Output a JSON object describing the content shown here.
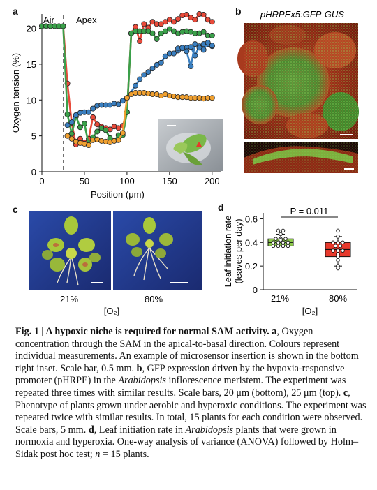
{
  "panels": {
    "a": "a",
    "b": "b",
    "c": "c",
    "d": "d"
  },
  "panel_a": {
    "region_air": "Air",
    "region_apex": "Apex",
    "ylabel": "Oxygen tension (%)",
    "xlabel": "Position (μm)",
    "xticks": [
      "0",
      "50",
      "100",
      "150",
      "200"
    ],
    "yticks": [
      "0",
      "5",
      "10",
      "15",
      "20"
    ]
  },
  "panel_b": {
    "title": "pHRPEx5:GFP-GUS"
  },
  "panel_c": {
    "label_left": "21%",
    "label_right": "80%",
    "axis": "[O₂]"
  },
  "panel_d": {
    "ylabel_line1": "Leaf initiation rate",
    "ylabel_line2": "(leaves per day)",
    "pvalue": "P = 0.011",
    "yticks": [
      "0",
      "0.2",
      "0.4",
      "0.6"
    ],
    "categories": [
      "21%",
      "80%"
    ],
    "axis": "[O₂]"
  },
  "caption": {
    "fig": "Fig. 1 | ",
    "title": "A hypoxic niche is required for normal SAM activity.",
    "a_letter": "a",
    "a_text": ", Oxygen concentration through the SAM in the apical-to-basal direction. Colours represent individual measurements. An example of microsensor insertion is shown in the bottom right inset. Scale bar, 0.5 mm. ",
    "b_letter": "b",
    "b_text_1": ", GFP expression driven by the hypoxia-responsive promoter (pHRPE) in the ",
    "b_species": "Arabidopsis",
    "b_text_2": " inflorescence meristem. The experiment was repeated three times with similar results. Scale bars, 20 μm (bottom), 25 μm (top). ",
    "c_letter": "c",
    "c_text": ", Phenotype of plants grown under aerobic and hyperoxic conditions. The experiment was repeated twice with similar results. In total, 15 plants for each condition were observed. Scale bars, 5 mm. ",
    "d_letter": "d",
    "d_text_1": ", Leaf initiation rate in ",
    "d_species": "Arabidopsis",
    "d_text_2": " plants that were grown in normoxia and hyperoxia. One-way analysis of variance (ANOVA) followed by Holm–Sidak post hoc test; ",
    "d_n": "n",
    "d_text_3": " = 15 plants."
  },
  "colors": {
    "red": "#e84a3a",
    "green": "#3aa04a",
    "blue": "#3a7fc0",
    "orange": "#f0a030",
    "box21": "#8cc84b",
    "box80": "#e8392c"
  },
  "chart_data": [
    {
      "type": "line",
      "xlabel": "Position (μm)",
      "ylabel": "Oxygen tension (%)",
      "xlim": [
        0,
        210
      ],
      "ylim": [
        0,
        22
      ],
      "annotations": [
        {
          "text": "Air",
          "x": 5
        },
        {
          "text": "Apex",
          "x": 40
        }
      ],
      "divider_x": 25,
      "series": [
        {
          "color": "red",
          "x": [
            0,
            5,
            10,
            15,
            20,
            25,
            30,
            35,
            40,
            45,
            50,
            55,
            60,
            65,
            70,
            75,
            80,
            85,
            90,
            95,
            100,
            105,
            110,
            115,
            120,
            125,
            130,
            135,
            140,
            145,
            150,
            155,
            160,
            165,
            170,
            175,
            180,
            185,
            190,
            195,
            200
          ],
          "y": [
            20.3,
            20.3,
            20.3,
            20.3,
            20.3,
            20.3,
            12.3,
            6.8,
            3.8,
            4.6,
            4.1,
            4.6,
            7.6,
            6.6,
            6.3,
            6.1,
            5.9,
            6.3,
            6.1,
            6.4,
            8.3,
            19.3,
            20.2,
            18.2,
            20.6,
            20.1,
            20.9,
            20.6,
            20.6,
            20.9,
            21.2,
            20.9,
            21.3,
            21.8,
            21.9,
            21.5,
            21.2,
            22.0,
            21.9,
            21.2,
            20.9
          ]
        },
        {
          "color": "green",
          "x": [
            0,
            5,
            10,
            15,
            20,
            25,
            30,
            35,
            40,
            45,
            50,
            55,
            60,
            65,
            70,
            75,
            80,
            85,
            90,
            95,
            100,
            105,
            110,
            115,
            120,
            125,
            130,
            135,
            140,
            145,
            150,
            155,
            160,
            165,
            170,
            175,
            180,
            185,
            190,
            195,
            200
          ],
          "y": [
            20.3,
            20.3,
            20.3,
            20.3,
            20.3,
            20.3,
            8.0,
            5.3,
            7.7,
            6.2,
            6.7,
            3.8,
            4.8,
            5.6,
            6.1,
            5.8,
            4.7,
            4.3,
            5.1,
            5.1,
            8.3,
            19.3,
            19.6,
            19.6,
            19.6,
            19.6,
            19.3,
            18.5,
            19.3,
            19.6,
            19.9,
            19.6,
            19.3,
            19.5,
            19.6,
            19.5,
            19.3,
            19.3,
            19.5,
            19.0,
            19.0
          ]
        },
        {
          "color": "blue",
          "x": [
            30,
            35,
            40,
            45,
            50,
            55,
            60,
            65,
            70,
            75,
            80,
            85,
            90,
            95,
            100,
            110,
            115,
            120,
            125,
            130,
            135,
            140,
            145,
            150,
            155,
            160,
            165,
            170,
            175,
            180,
            185,
            190,
            195,
            200
          ],
          "y": [
            6.5,
            6.9,
            7.9,
            8.2,
            8.3,
            8.3,
            8.8,
            9.2,
            9.3,
            9.3,
            9.3,
            9.5,
            9.4,
            9.9,
            10.3,
            12.0,
            12.9,
            13.5,
            13.9,
            14.4,
            14.9,
            15.2,
            16.1,
            16.5,
            16.5,
            16.9,
            17.2,
            17.3,
            17.4,
            16.2,
            17.5,
            17.8,
            17.8,
            17.5
          ]
        },
        {
          "color": "orange",
          "x": [
            30,
            35,
            40,
            45,
            50,
            55,
            60,
            65,
            70,
            75,
            80,
            85,
            90,
            95,
            100,
            105,
            110,
            115,
            120,
            125,
            130,
            135,
            140,
            145,
            150,
            155,
            160,
            165,
            170,
            175,
            180,
            185,
            190,
            195,
            200
          ],
          "y": [
            5.0,
            4.6,
            4.2,
            4.0,
            3.9,
            3.7,
            4.4,
            4.5,
            4.3,
            4.2,
            4.1,
            4.3,
            4.4,
            5.4,
            10.3,
            10.8,
            11.0,
            11.0,
            11.0,
            10.9,
            10.8,
            10.8,
            10.6,
            10.8,
            10.6,
            10.5,
            10.4,
            10.4,
            10.4,
            10.3,
            10.3,
            10.3,
            10.2,
            10.3,
            10.3
          ]
        },
        {
          "color": "blue",
          "x": [
            160,
            165,
            170,
            175,
            180,
            185,
            190,
            195,
            200
          ],
          "y": [
            17.2,
            17.3,
            16.8,
            14.7,
            17.8,
            17.3,
            17.0,
            18.0,
            17.6
          ]
        }
      ]
    },
    {
      "type": "box",
      "categories": [
        "21%",
        "80%"
      ],
      "xlabel": "[O₂]",
      "ylabel": "Leaf initiation rate (leaves per day)",
      "ylim": [
        0,
        0.65
      ],
      "boxes": [
        {
          "q1": 0.37,
          "median": 0.4,
          "q3": 0.43,
          "min": 0.37,
          "max": 0.47,
          "points": [
            0.5,
            0.5,
            0.47,
            0.43,
            0.43,
            0.43,
            0.42,
            0.4,
            0.4,
            0.4,
            0.4,
            0.37,
            0.37,
            0.37,
            0.37
          ]
        },
        {
          "q1": 0.28,
          "median": 0.34,
          "q3": 0.4,
          "min": 0.2,
          "max": 0.45,
          "points": [
            0.5,
            0.45,
            0.4,
            0.4,
            0.4,
            0.37,
            0.37,
            0.33,
            0.33,
            0.33,
            0.3,
            0.28,
            0.25,
            0.2,
            0.18
          ]
        }
      ],
      "annotation": "P = 0.011"
    }
  ]
}
